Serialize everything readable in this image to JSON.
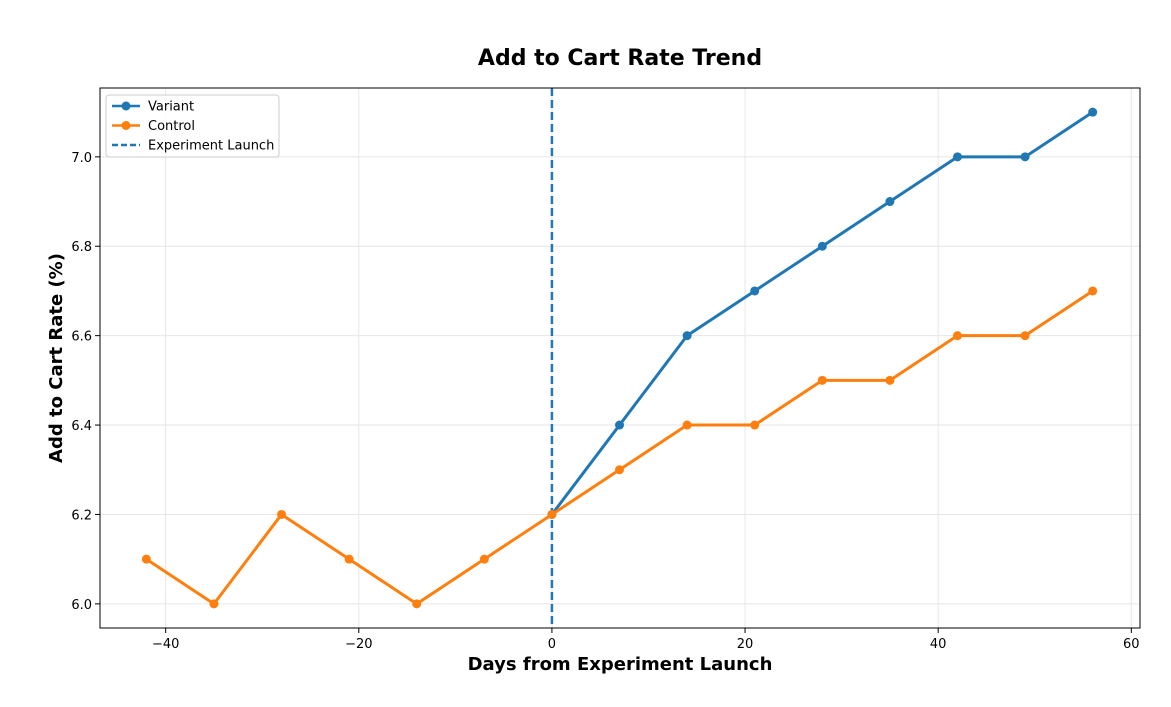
{
  "chart_data": {
    "type": "line",
    "title": "Add to Cart Rate Trend",
    "xlabel": "Days from Experiment Launch",
    "ylabel": "Add to Cart Rate (%)",
    "xlim": [
      -46.8,
      60.9
    ],
    "ylim": [
      5.946,
      7.154
    ],
    "xticks": [
      -40,
      -20,
      0,
      20,
      40,
      60
    ],
    "xtick_labels": [
      "−40",
      "−20",
      "0",
      "20",
      "40",
      "60"
    ],
    "yticks": [
      6.0,
      6.2,
      6.4,
      6.6,
      6.8,
      7.0
    ],
    "ytick_labels": [
      "6.0",
      "6.2",
      "6.4",
      "6.6",
      "6.8",
      "7.0"
    ],
    "grid": true,
    "legend_position": "top-left",
    "series": [
      {
        "name": "Variant",
        "color": "#1f77b4",
        "x": [
          0,
          7,
          14,
          21,
          28,
          35,
          42,
          49,
          56
        ],
        "y": [
          6.2,
          6.4,
          6.6,
          6.7,
          6.8,
          6.9,
          7.0,
          7.0,
          7.1
        ]
      },
      {
        "name": "Control",
        "color": "#ff7f0e",
        "x": [
          -42,
          -35,
          -28,
          -21,
          -14,
          -7,
          0,
          7,
          14,
          21,
          28,
          35,
          42,
          49,
          56
        ],
        "y": [
          6.1,
          6.0,
          6.2,
          6.1,
          6.0,
          6.1,
          6.2,
          6.3,
          6.4,
          6.4,
          6.5,
          6.5,
          6.6,
          6.6,
          6.7
        ]
      }
    ],
    "annotations": [
      {
        "type": "vline",
        "x": 0,
        "name": "Experiment Launch",
        "color": "#1f77b4",
        "style": "dashed"
      }
    ]
  }
}
